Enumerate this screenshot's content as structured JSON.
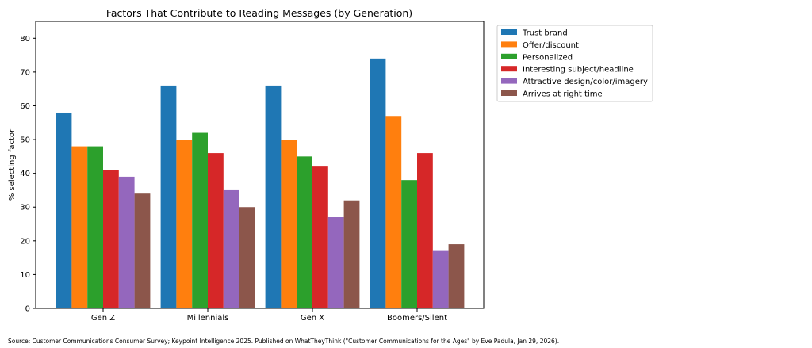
{
  "chart_data": {
    "type": "bar",
    "title": "Factors That Contribute to Reading Messages (by Generation)",
    "xlabel": "",
    "ylabel": "% selecting factor",
    "ylim": [
      0,
      85
    ],
    "yticks": [
      0,
      10,
      20,
      30,
      40,
      50,
      60,
      70,
      80
    ],
    "grid": false,
    "legend_position": "outside-right-top",
    "categories": [
      "Gen Z",
      "Millennials",
      "Gen X",
      "Boomers/Silent"
    ],
    "series": [
      {
        "name": "Trust brand",
        "color": "#1f77b4",
        "values": [
          58,
          66,
          66,
          74
        ]
      },
      {
        "name": "Offer/discount",
        "color": "#ff7f0e",
        "values": [
          48,
          50,
          50,
          57
        ]
      },
      {
        "name": "Personalized",
        "color": "#2ca02c",
        "values": [
          48,
          52,
          45,
          38
        ]
      },
      {
        "name": "Interesting subject/headline",
        "color": "#d62728",
        "values": [
          41,
          46,
          42,
          46
        ]
      },
      {
        "name": "Attractive design/color/imagery",
        "color": "#9467bd",
        "values": [
          39,
          35,
          27,
          17
        ]
      },
      {
        "name": "Arrives at right time",
        "color": "#8c564b",
        "values": [
          34,
          30,
          32,
          19
        ]
      }
    ]
  },
  "source": "Source: Customer Communications Consumer Survey; Keypoint Intelligence 2025. Published on WhatTheyThink (\"Customer Communications for the Ages\" by Eve Padula, Jan 29, 2026)."
}
